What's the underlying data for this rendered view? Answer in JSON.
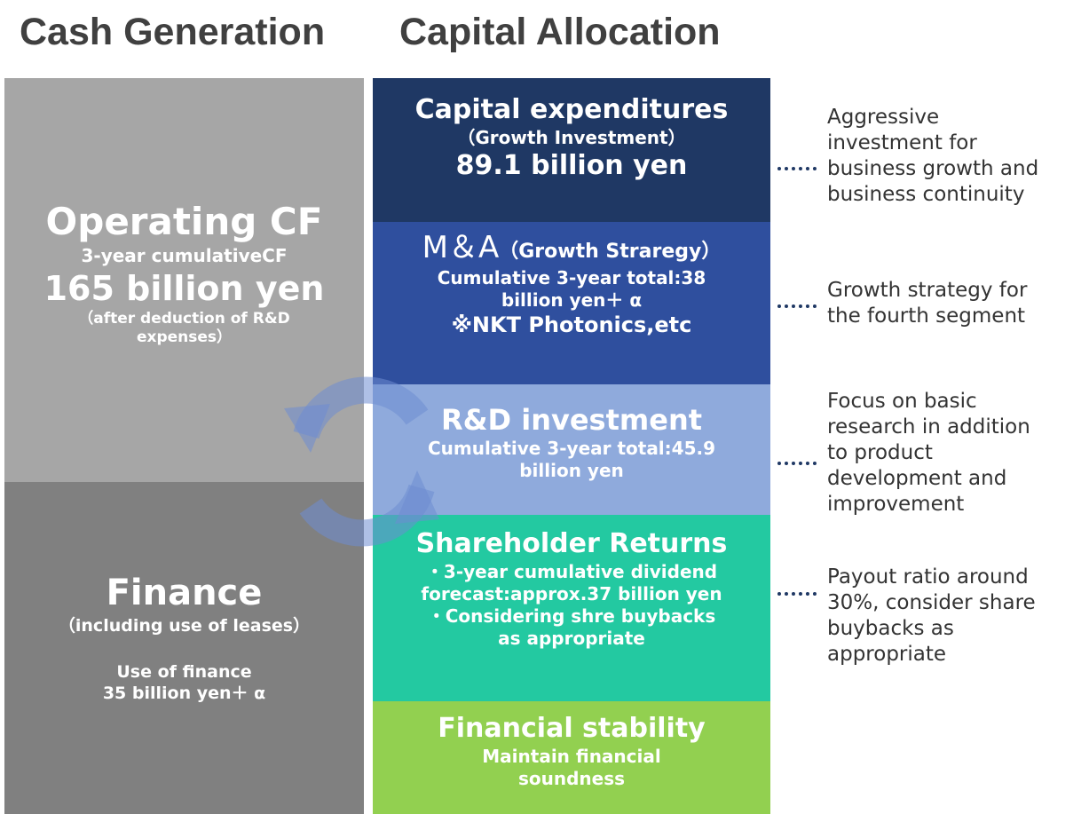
{
  "headers": [
    "Cash Generation",
    "Capital Allocation"
  ],
  "operating": {
    "lines": [
      "Operating CF",
      "3-year cumulativeCF",
      "165 billion yen",
      "（after deduction of R&D",
      "expenses）"
    ]
  },
  "finance": {
    "lines": [
      "Finance",
      "（including use of leases）",
      "Use of finance",
      "35 billion yen＋ α"
    ]
  },
  "allocation": [
    {
      "lines": [
        "Capital expenditures",
        "（Growth Investment）",
        "89.1 billion yen"
      ],
      "note": [
        "Aggressive",
        "investment for",
        "business growth and",
        "business continuity"
      ]
    },
    {
      "heading": [
        "M＆A",
        "（Growth Straregy）"
      ],
      "lines": [
        "Cumulative 3-year total:38",
        "billion yen＋ α",
        "※NKT Photonics,etc"
      ],
      "note": [
        "Growth strategy for",
        "the fourth segment"
      ]
    },
    {
      "lines": [
        "R&D investment",
        "Cumulative 3-year total:45.9",
        "billion yen"
      ],
      "note": [
        "Focus on basic",
        "research in addition",
        "to product",
        "development and",
        "improvement"
      ]
    },
    {
      "lines": [
        "Shareholder Returns",
        "・3-year cumulative dividend",
        "forecast:approx.37 billion yen",
        "・Considering shre buybacks",
        "as appropriate"
      ],
      "note": [
        "Payout ratio around",
        "30%, consider share",
        "buybacks as",
        "appropriate"
      ]
    },
    {
      "lines": [
        "Financial stability",
        "Maintain financial",
        "soundness"
      ]
    }
  ]
}
